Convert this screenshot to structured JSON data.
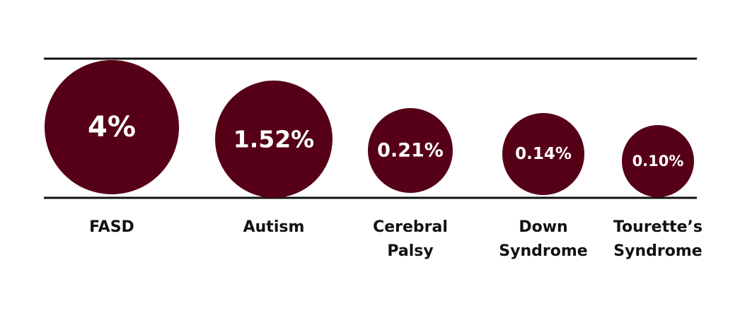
{
  "chart_data": {
    "type": "bubble",
    "categories": [
      "FASD",
      "Autism",
      "Cerebral Palsy",
      "Down Syndrome",
      "Tourette’s Syndrome"
    ],
    "values": [
      4,
      1.52,
      0.21,
      0.14,
      0.1
    ],
    "value_labels": [
      "4%",
      "1.52%",
      "0.21%",
      "0.14%",
      "0.10%"
    ],
    "color": "#560018"
  }
}
